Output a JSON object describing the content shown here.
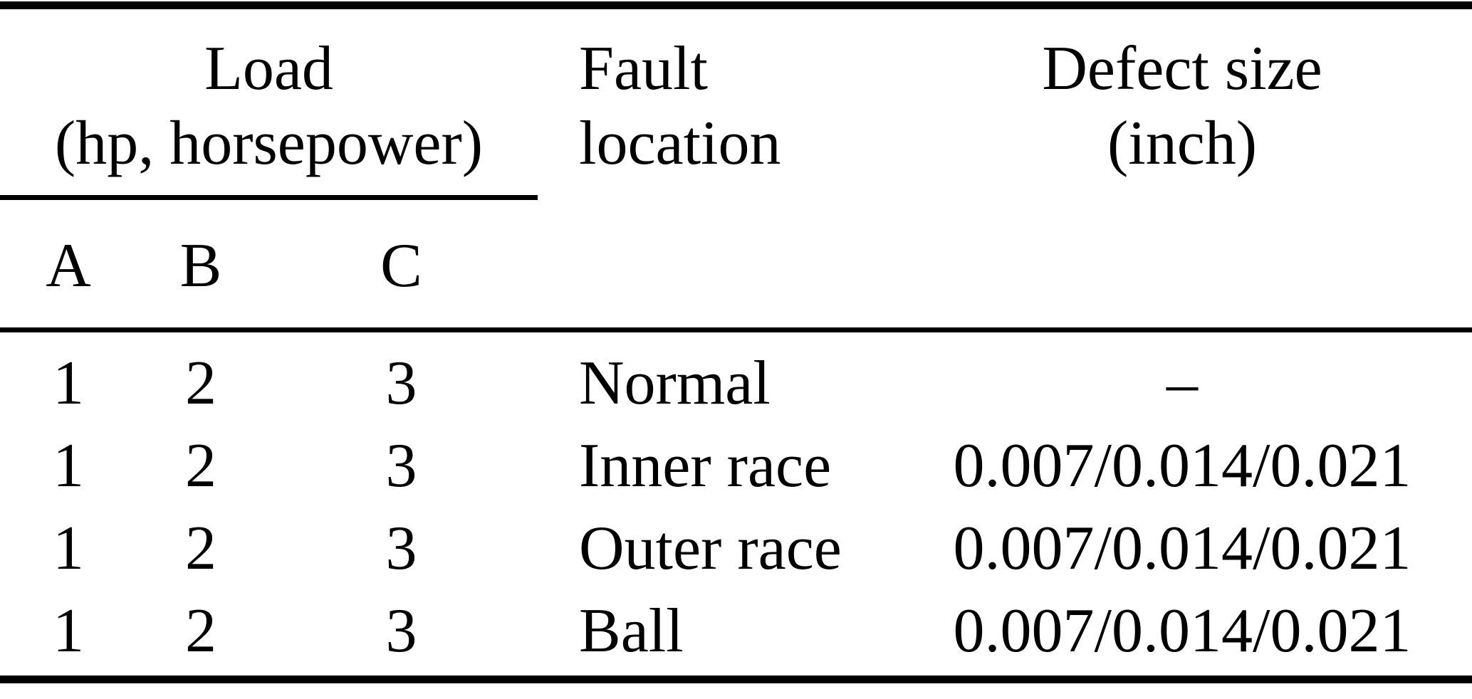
{
  "table": {
    "group_header": {
      "line1": "Load",
      "line2": "(hp, horsepower)"
    },
    "sub_headers": [
      "A",
      "B",
      "C"
    ],
    "headers": {
      "fault_line1": "Fault",
      "fault_line2": "location",
      "defect_line1": "Defect size",
      "defect_line2": "(inch)"
    },
    "rows": [
      {
        "load_a": "1",
        "load_b": "2",
        "load_c": "3",
        "fault_location": "Normal",
        "defect_size": "–"
      },
      {
        "load_a": "1",
        "load_b": "2",
        "load_c": "3",
        "fault_location": "Inner race",
        "defect_size": "0.007/0.014/0.021"
      },
      {
        "load_a": "1",
        "load_b": "2",
        "load_c": "3",
        "fault_location": "Outer race",
        "defect_size": "0.007/0.014/0.021"
      },
      {
        "load_a": "1",
        "load_b": "2",
        "load_c": "3",
        "fault_location": "Ball",
        "defect_size": "0.007/0.014/0.021"
      }
    ],
    "colors": {
      "text": "#000000",
      "background": "#ffffff",
      "rule": "#000000"
    }
  }
}
